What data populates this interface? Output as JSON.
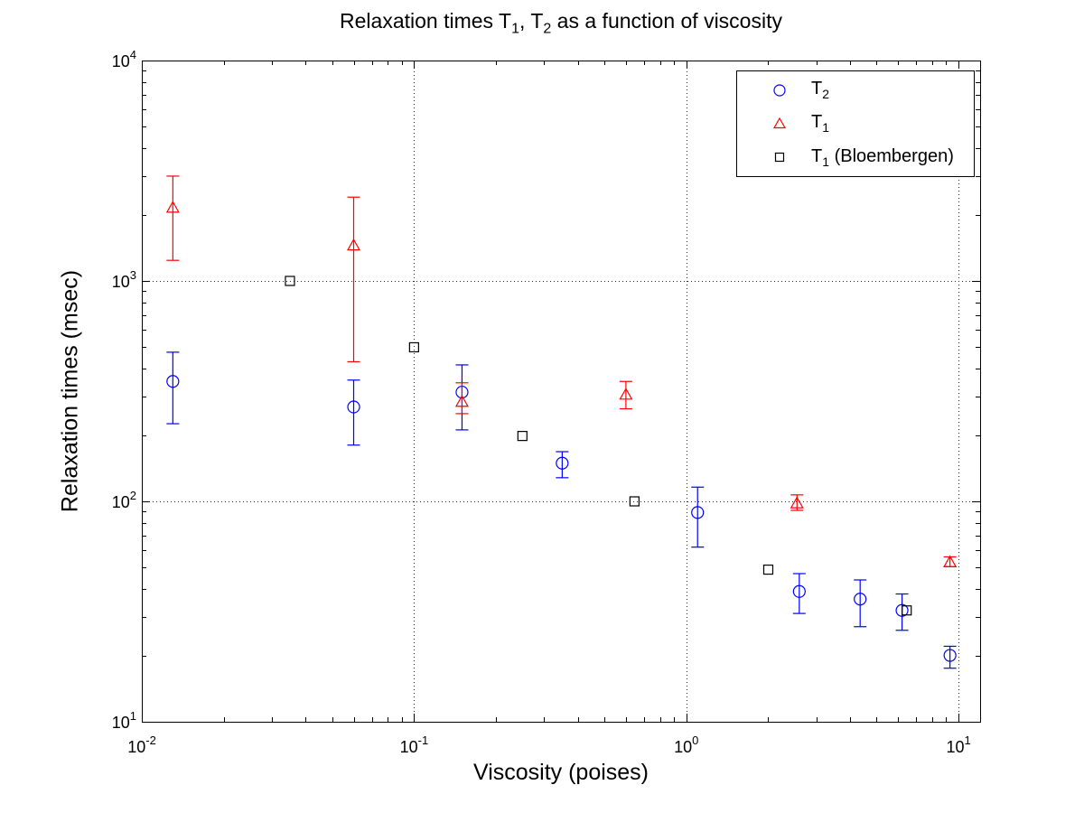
{
  "chart_data": {
    "type": "scatter",
    "title": "Relaxation times T1, T2 as a function of viscosity",
    "title_parts": {
      "t1": "Relaxation times T",
      "sub1": "1",
      "t2": ", T",
      "sub2": "2",
      "t3": " as a function of viscosity"
    },
    "xlabel": "Viscosity (poises)",
    "ylabel": "Relaxation times (msec)",
    "x_scale": "log",
    "y_scale": "log",
    "xlim": [
      0.01,
      12
    ],
    "ylim": [
      10,
      10000
    ],
    "x_major_ticks": [
      {
        "value": 0.01,
        "base": "10",
        "exponent": "-2"
      },
      {
        "value": 0.1,
        "base": "10",
        "exponent": "-1"
      },
      {
        "value": 1,
        "base": "10",
        "exponent": "0"
      },
      {
        "value": 10,
        "base": "10",
        "exponent": "1"
      }
    ],
    "y_major_ticks": [
      {
        "value": 10,
        "base": "10",
        "exponent": "1"
      },
      {
        "value": 100,
        "base": "10",
        "exponent": "2"
      },
      {
        "value": 1000,
        "base": "10",
        "exponent": "3"
      },
      {
        "value": 10000,
        "base": "10",
        "exponent": "4"
      }
    ],
    "minor_tick_multiples": [
      2,
      3,
      4,
      5,
      6,
      7,
      8,
      9
    ],
    "grid": {
      "style": "dotted",
      "x_lines": [
        0.1,
        1,
        10
      ],
      "y_lines": [
        100,
        1000
      ]
    },
    "legend": {
      "position": "top-right"
    },
    "series": [
      {
        "id": "T2",
        "name": "T2",
        "marker": "circle",
        "color": "#0000ff",
        "label": {
          "base": "T",
          "sub": "2",
          "rest": ""
        },
        "points": [
          {
            "x": 0.013,
            "y": 350,
            "lo": 225,
            "hi": 475
          },
          {
            "x": 0.06,
            "y": 268,
            "lo": 180,
            "hi": 355
          },
          {
            "x": 0.15,
            "y": 313,
            "lo": 211,
            "hi": 416
          },
          {
            "x": 0.35,
            "y": 149,
            "lo": 128,
            "hi": 168
          },
          {
            "x": 1.1,
            "y": 89,
            "lo": 62,
            "hi": 116
          },
          {
            "x": 2.6,
            "y": 39,
            "lo": 31,
            "hi": 47
          },
          {
            "x": 4.35,
            "y": 36,
            "lo": 27,
            "hi": 44
          },
          {
            "x": 6.2,
            "y": 32,
            "lo": 26,
            "hi": 38
          },
          {
            "x": 9.3,
            "y": 20,
            "lo": 17.5,
            "hi": 22
          }
        ]
      },
      {
        "id": "T1",
        "name": "T1",
        "marker": "triangle",
        "color": "#ff0000",
        "label": {
          "base": "T",
          "sub": "1",
          "rest": ""
        },
        "points": [
          {
            "x": 0.013,
            "y": 2150,
            "lo": 1240,
            "hi": 2990
          },
          {
            "x": 0.06,
            "y": 1450,
            "lo": 430,
            "hi": 2400
          },
          {
            "x": 0.15,
            "y": 283,
            "lo": 250,
            "hi": 345
          },
          {
            "x": 0.6,
            "y": 305,
            "lo": 263,
            "hi": 350
          },
          {
            "x": 2.55,
            "y": 98,
            "lo": 91,
            "hi": 107
          },
          {
            "x": 9.3,
            "y": 53,
            "lo": 50.5,
            "hi": 56
          }
        ]
      },
      {
        "id": "T1_bloembergen",
        "name": "T1 (Bloembergen)",
        "marker": "square",
        "color": "#000000",
        "label": {
          "base": "T",
          "sub": "1",
          "rest": " (Bloembergen)"
        },
        "points": [
          {
            "x": 0.035,
            "y": 1000
          },
          {
            "x": 0.1,
            "y": 500
          },
          {
            "x": 0.25,
            "y": 198
          },
          {
            "x": 0.645,
            "y": 100
          },
          {
            "x": 2.0,
            "y": 49
          },
          {
            "x": 6.45,
            "y": 32
          }
        ]
      }
    ]
  }
}
